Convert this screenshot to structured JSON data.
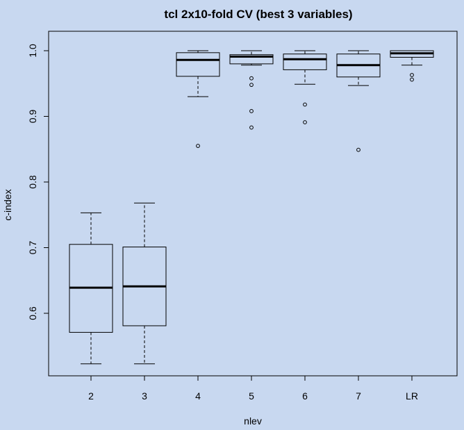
{
  "chart_data": {
    "type": "boxplot",
    "title": "tcl 2x10-fold CV (best 3 variables)",
    "xlabel": "nlev",
    "ylabel": "c-index",
    "ylim": [
      0.5,
      1.035
    ],
    "yticks": [
      "0.6",
      "0.7",
      "0.8",
      "0.9",
      "1.0"
    ],
    "ytick_values": [
      0.6,
      0.7,
      0.8,
      0.9,
      1.0
    ],
    "grid": false,
    "categories": [
      "2",
      "3",
      "4",
      "5",
      "6",
      "7",
      "LR"
    ],
    "boxes": [
      {
        "name": "2",
        "whisker_low": 0.523,
        "q1": 0.571,
        "median": 0.639,
        "q3": 0.705,
        "whisker_high": 0.753,
        "outliers": []
      },
      {
        "name": "3",
        "whisker_low": 0.523,
        "q1": 0.581,
        "median": 0.641,
        "q3": 0.701,
        "whisker_high": 0.768,
        "outliers": []
      },
      {
        "name": "4",
        "whisker_low": 0.93,
        "q1": 0.961,
        "median": 0.986,
        "q3": 0.997,
        "whisker_high": 1.0,
        "outliers": [
          0.855
        ]
      },
      {
        "name": "5",
        "whisker_low": 0.978,
        "q1": 0.98,
        "median": 0.991,
        "q3": 0.994,
        "whisker_high": 1.0,
        "outliers": [
          0.958,
          0.948,
          0.908,
          0.883
        ]
      },
      {
        "name": "6",
        "whisker_low": 0.949,
        "q1": 0.971,
        "median": 0.987,
        "q3": 0.995,
        "whisker_high": 1.0,
        "outliers": [
          0.918,
          0.891
        ]
      },
      {
        "name": "7",
        "whisker_low": 0.947,
        "q1": 0.96,
        "median": 0.978,
        "q3": 0.995,
        "whisker_high": 1.0,
        "outliers": [
          0.849
        ]
      },
      {
        "name": "LR",
        "whisker_low": 0.978,
        "q1": 0.99,
        "median": 0.996,
        "q3": 1.0,
        "whisker_high": 1.0,
        "outliers": [
          0.963,
          0.956
        ]
      }
    ]
  },
  "colors": {
    "background": "#c8d8f0",
    "box_fill": "#c8d8f0",
    "stroke": "#000000"
  }
}
